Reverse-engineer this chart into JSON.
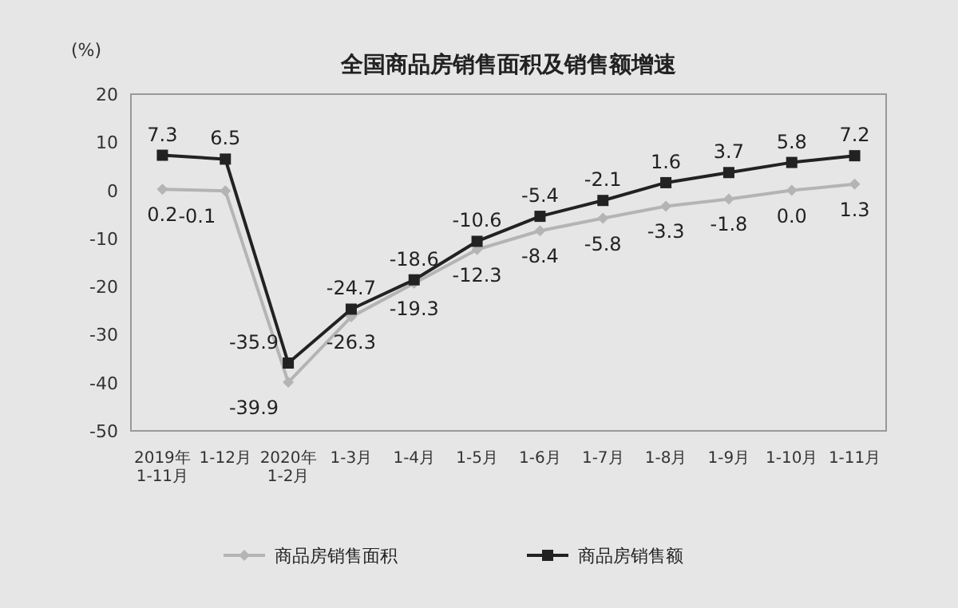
{
  "chart_data": {
    "type": "line",
    "title": "全国商品房销售面积及销售额增速",
    "ylabel": "(%)",
    "categories": [
      "2019年\n1-11月",
      "1-12月",
      "2020年\n1-2月",
      "1-3月",
      "1-4月",
      "1-5月",
      "1-6月",
      "1-7月",
      "1-8月",
      "1-9月",
      "1-10月",
      "1-11月"
    ],
    "series": [
      {
        "name": "商品房销售面积",
        "color": "#b4b4b4",
        "marker": "diamond",
        "values": [
          0.2,
          -0.1,
          -39.9,
          -26.3,
          -19.3,
          -12.3,
          -8.4,
          -5.8,
          -3.3,
          -1.8,
          0.0,
          1.3
        ],
        "value_labels": [
          "0.2",
          "-0.1",
          "-39.9",
          "-26.3",
          "-19.3",
          "-12.3",
          "-8.4",
          "-5.8",
          "-3.3",
          "-1.8",
          "0.0",
          "1.3"
        ]
      },
      {
        "name": "商品房销售额",
        "color": "#222222",
        "marker": "square",
        "values": [
          7.3,
          6.5,
          -35.9,
          -24.7,
          -18.6,
          -10.6,
          -5.4,
          -2.1,
          1.6,
          3.7,
          5.8,
          7.2
        ],
        "value_labels": [
          "7.3",
          "6.5",
          "-35.9",
          "-24.7",
          "-18.6",
          "-10.6",
          "-5.4",
          "-2.1",
          "1.6",
          "3.7",
          "5.8",
          "7.2"
        ]
      }
    ],
    "ylim": [
      -50,
      20
    ],
    "yticks": [
      -50,
      -40,
      -30,
      -20,
      -10,
      0,
      10,
      20
    ],
    "legend": "bottom"
  }
}
